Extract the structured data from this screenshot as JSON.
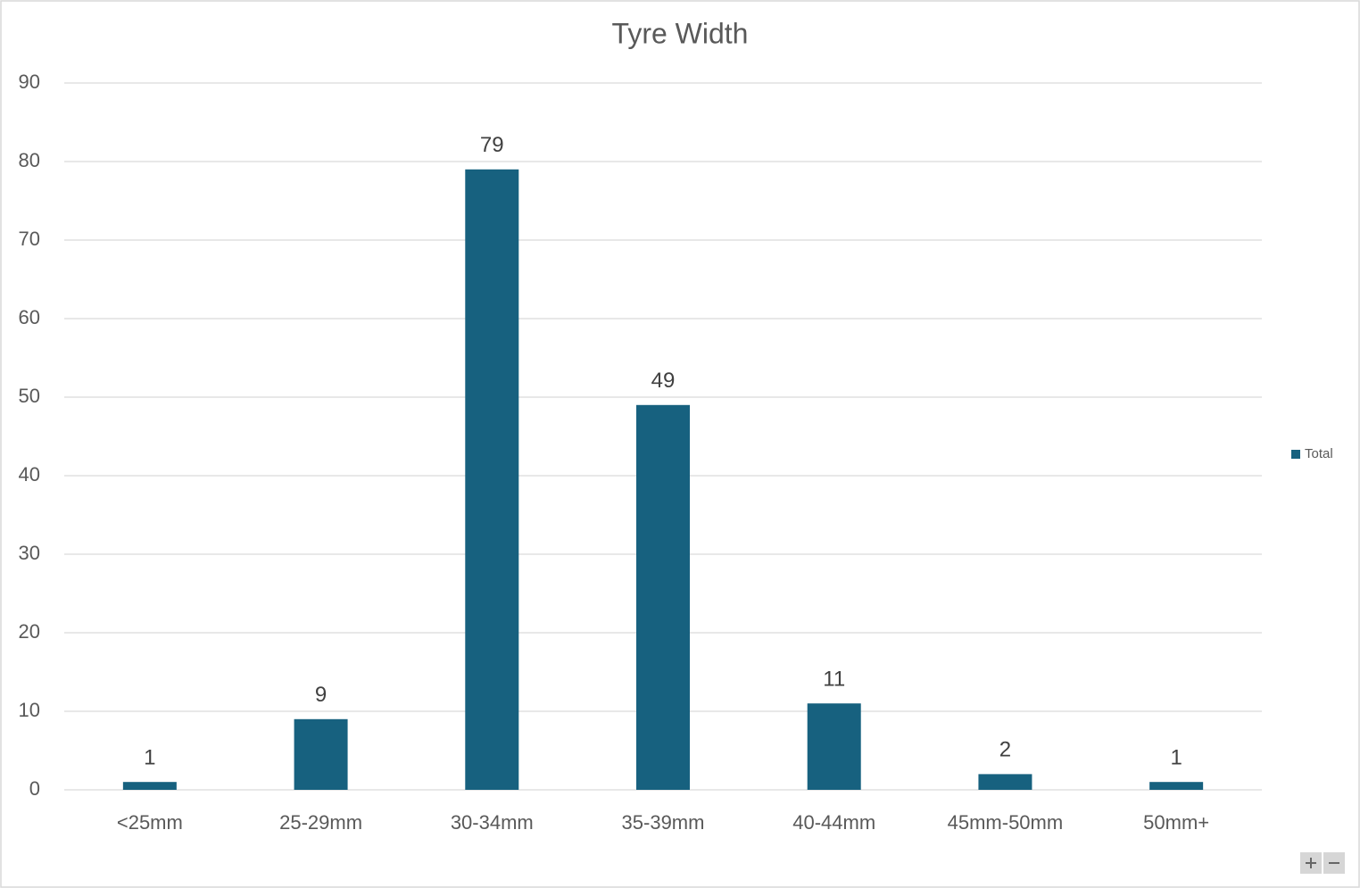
{
  "chart_data": {
    "type": "bar",
    "title": "Tyre Width",
    "categories": [
      "<25mm",
      "25-29mm",
      "30-34mm",
      "35-39mm",
      "40-44mm",
      "45mm-50mm",
      "50mm+"
    ],
    "series": [
      {
        "name": "Total",
        "color": "#17617f",
        "values": [
          1,
          9,
          79,
          49,
          11,
          2,
          1
        ]
      }
    ],
    "ylim": [
      0,
      90
    ],
    "yticks": [
      0,
      10,
      20,
      30,
      40,
      50,
      60,
      70,
      80,
      90
    ],
    "grid": true,
    "legend": "right"
  }
}
